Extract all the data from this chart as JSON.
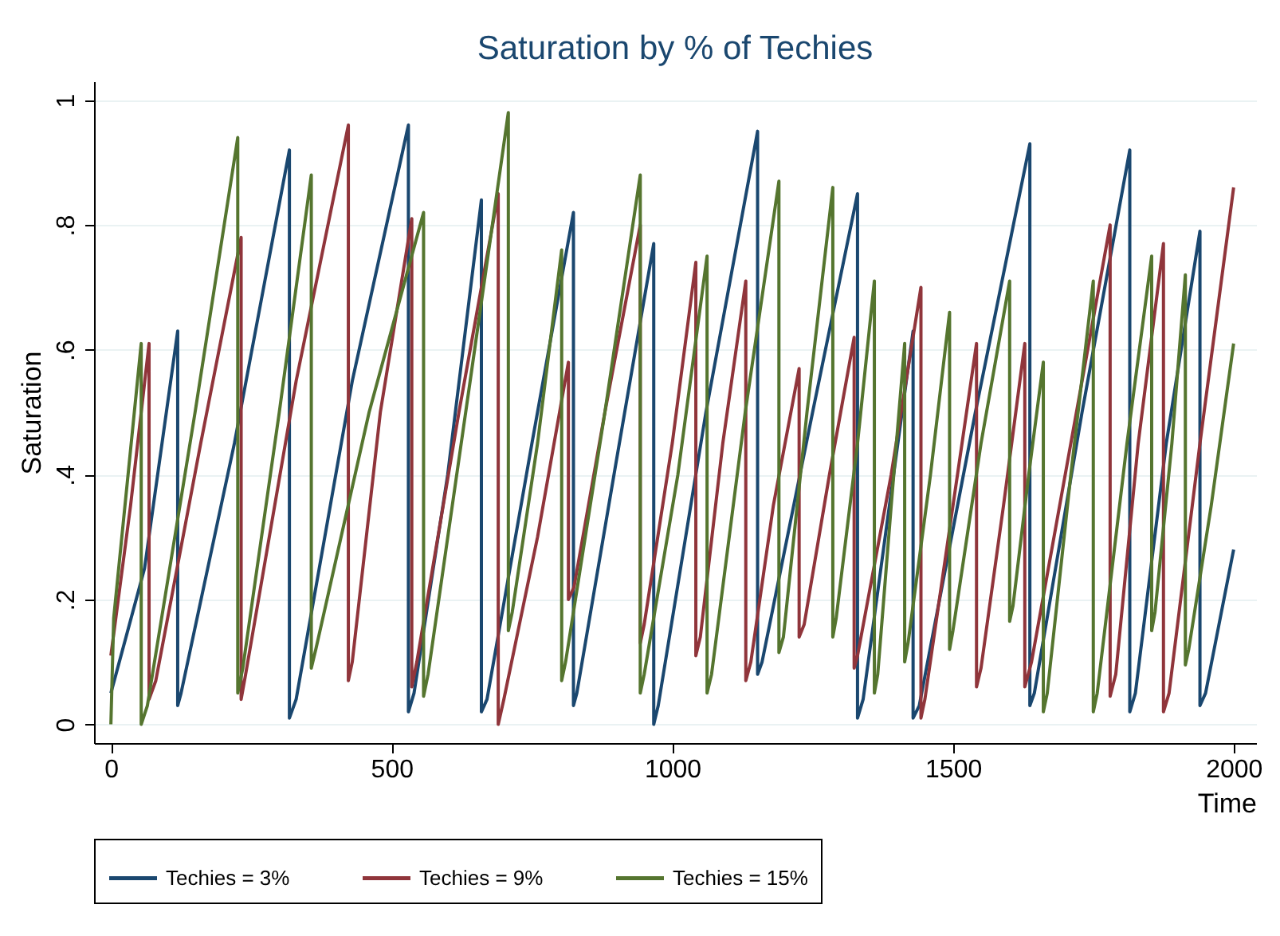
{
  "chart_data": {
    "type": "line",
    "title": "Saturation by % of Techies",
    "xlabel": "Time",
    "ylabel": "Saturation",
    "xlim": [
      -30,
      2040
    ],
    "ylim": [
      -0.03,
      1.03
    ],
    "xticks": [
      0,
      500,
      1000,
      1500,
      2000
    ],
    "yticks": [
      {
        "value": 0,
        "label": "0"
      },
      {
        "value": 0.2,
        "label": ".2"
      },
      {
        "value": 0.4,
        "label": ".4"
      },
      {
        "value": 0.6,
        "label": ".6"
      },
      {
        "value": 0.8,
        "label": ".8"
      },
      {
        "value": 1,
        "label": "1"
      }
    ],
    "grid": "y",
    "legend": "bottom",
    "line_style": "solid",
    "marker": "none",
    "series": [
      {
        "name": "Techies = 3%",
        "color": "#1a476f",
        "x": [
          0,
          60,
          119,
          119,
          125,
          220,
          318,
          318,
          330,
          430,
          530,
          530,
          540,
          600,
          660,
          660,
          670,
          750,
          824,
          824,
          830,
          900,
          967,
          967,
          975,
          1060,
          1152,
          1152,
          1160,
          1250,
          1330,
          1330,
          1340,
          1429,
          1429,
          1440,
          1540,
          1637,
          1637,
          1645,
          1730,
          1815,
          1815,
          1825,
          1880,
          1940,
          1940,
          1950,
          2000
        ],
        "values": [
          0.05,
          0.25,
          0.63,
          0.03,
          0.05,
          0.45,
          0.92,
          0.01,
          0.04,
          0.55,
          0.96,
          0.02,
          0.05,
          0.4,
          0.84,
          0.02,
          0.04,
          0.45,
          0.82,
          0.03,
          0.05,
          0.42,
          0.77,
          0.0,
          0.03,
          0.5,
          0.95,
          0.08,
          0.1,
          0.5,
          0.85,
          0.01,
          0.04,
          0.63,
          0.01,
          0.03,
          0.5,
          0.93,
          0.03,
          0.05,
          0.5,
          0.92,
          0.02,
          0.05,
          0.45,
          0.79,
          0.03,
          0.05,
          0.28
        ]
      },
      {
        "name": "Techies = 9%",
        "color": "#90353b",
        "x": [
          0,
          35,
          68,
          68,
          80,
          160,
          232,
          232,
          240,
          330,
          423,
          423,
          430,
          480,
          536,
          536,
          545,
          620,
          690,
          690,
          700,
          760,
          815,
          815,
          825,
          880,
          943,
          943,
          950,
          1000,
          1042,
          1042,
          1050,
          1090,
          1131,
          1131,
          1140,
          1180,
          1226,
          1226,
          1235,
          1280,
          1324,
          1324,
          1330,
          1390,
          1443,
          1443,
          1450,
          1500,
          1542,
          1542,
          1550,
          1590,
          1628,
          1628,
          1640,
          1710,
          1780,
          1780,
          1790,
          1830,
          1875,
          1875,
          1885,
          1940,
          2000
        ],
        "values": [
          0.11,
          0.35,
          0.61,
          0.04,
          0.07,
          0.45,
          0.78,
          0.04,
          0.08,
          0.55,
          0.96,
          0.07,
          0.1,
          0.5,
          0.81,
          0.06,
          0.1,
          0.5,
          0.85,
          0.0,
          0.04,
          0.3,
          0.58,
          0.2,
          0.22,
          0.5,
          0.8,
          0.13,
          0.16,
          0.45,
          0.74,
          0.11,
          0.14,
          0.45,
          0.71,
          0.07,
          0.1,
          0.35,
          0.57,
          0.14,
          0.16,
          0.4,
          0.62,
          0.09,
          0.11,
          0.4,
          0.7,
          0.01,
          0.04,
          0.35,
          0.61,
          0.06,
          0.09,
          0.35,
          0.61,
          0.06,
          0.1,
          0.45,
          0.8,
          0.045,
          0.08,
          0.45,
          0.77,
          0.02,
          0.05,
          0.45,
          0.86
        ]
      },
      {
        "name": "Techies = 15%",
        "color": "#55752f",
        "x": [
          0,
          5,
          54,
          54,
          65,
          150,
          226,
          226,
          235,
          300,
          357,
          357,
          365,
          460,
          557,
          557,
          565,
          640,
          708,
          708,
          715,
          760,
          803,
          803,
          810,
          880,
          943,
          943,
          950,
          1010,
          1062,
          1062,
          1070,
          1130,
          1190,
          1190,
          1198,
          1240,
          1286,
          1286,
          1292,
          1330,
          1360,
          1360,
          1366,
          1390,
          1414,
          1414,
          1420,
          1460,
          1494,
          1494,
          1500,
          1550,
          1601,
          1601,
          1607,
          1635,
          1661,
          1661,
          1668,
          1710,
          1750,
          1750,
          1757,
          1810,
          1854,
          1854,
          1860,
          1890,
          1914,
          1914,
          1920,
          1960,
          2000
        ],
        "values": [
          0.0,
          0.17,
          0.61,
          0.0,
          0.03,
          0.5,
          0.94,
          0.05,
          0.09,
          0.5,
          0.88,
          0.09,
          0.12,
          0.5,
          0.82,
          0.045,
          0.08,
          0.55,
          0.98,
          0.15,
          0.18,
          0.45,
          0.76,
          0.07,
          0.1,
          0.5,
          0.88,
          0.05,
          0.08,
          0.4,
          0.75,
          0.05,
          0.08,
          0.5,
          0.87,
          0.115,
          0.14,
          0.5,
          0.86,
          0.14,
          0.17,
          0.45,
          0.71,
          0.05,
          0.08,
          0.35,
          0.61,
          0.1,
          0.13,
          0.4,
          0.66,
          0.12,
          0.15,
          0.45,
          0.71,
          0.165,
          0.19,
          0.4,
          0.58,
          0.02,
          0.05,
          0.4,
          0.71,
          0.02,
          0.05,
          0.45,
          0.75,
          0.15,
          0.18,
          0.45,
          0.72,
          0.095,
          0.12,
          0.35,
          0.61
        ]
      }
    ]
  }
}
